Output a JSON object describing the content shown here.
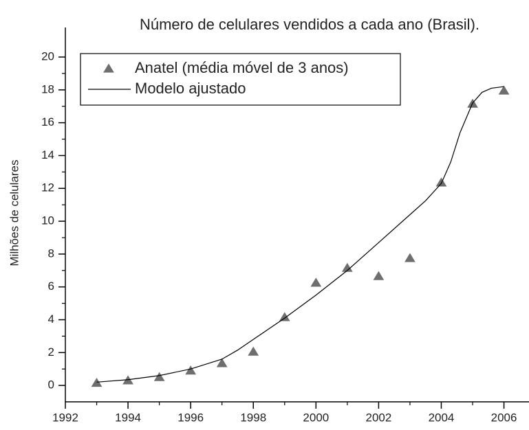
{
  "chart_data": {
    "type": "scatter",
    "title": "Número de celulares vendidos a cada ano (Brasil).",
    "y_label": "Milhões de celulares",
    "xlim": [
      1992,
      2006.8
    ],
    "ylim": [
      -1,
      21.8
    ],
    "xticks": [
      1992,
      1994,
      1996,
      1998,
      2000,
      2002,
      2004,
      2006
    ],
    "yticks": [
      0,
      2,
      4,
      6,
      8,
      10,
      12,
      14,
      16,
      18,
      20
    ],
    "legend": "top-left",
    "series": [
      {
        "name": "Anatel (média móvel de 3 anos)",
        "mode": "markers",
        "marker": "triangle",
        "color": "#6e6e6e",
        "x": [
          1993,
          1994,
          1995,
          1996,
          1997,
          1998,
          1999,
          2000,
          2001,
          2002,
          2003,
          2004,
          2005,
          2006
        ],
        "values": [
          0.15,
          0.3,
          0.5,
          0.9,
          1.35,
          2.05,
          4.15,
          6.25,
          7.15,
          6.65,
          7.75,
          12.35,
          17.15,
          17.95
        ]
      },
      {
        "name": "Modelo ajustado",
        "mode": "lines",
        "color": "#000000",
        "x": [
          1993,
          1994,
          1995,
          1996,
          1997,
          1997.5,
          1998,
          1998.5,
          1999,
          2000,
          2001,
          2002,
          2003,
          2003.5,
          2004,
          2004.3,
          2004.6,
          2005,
          2005.3,
          2005.6,
          2006
        ],
        "values": [
          0.2,
          0.35,
          0.6,
          1.0,
          1.6,
          2.15,
          2.8,
          3.45,
          4.1,
          5.5,
          7.0,
          8.7,
          10.4,
          11.25,
          12.3,
          13.6,
          15.4,
          17.2,
          17.85,
          18.1,
          18.2
        ]
      }
    ]
  }
}
